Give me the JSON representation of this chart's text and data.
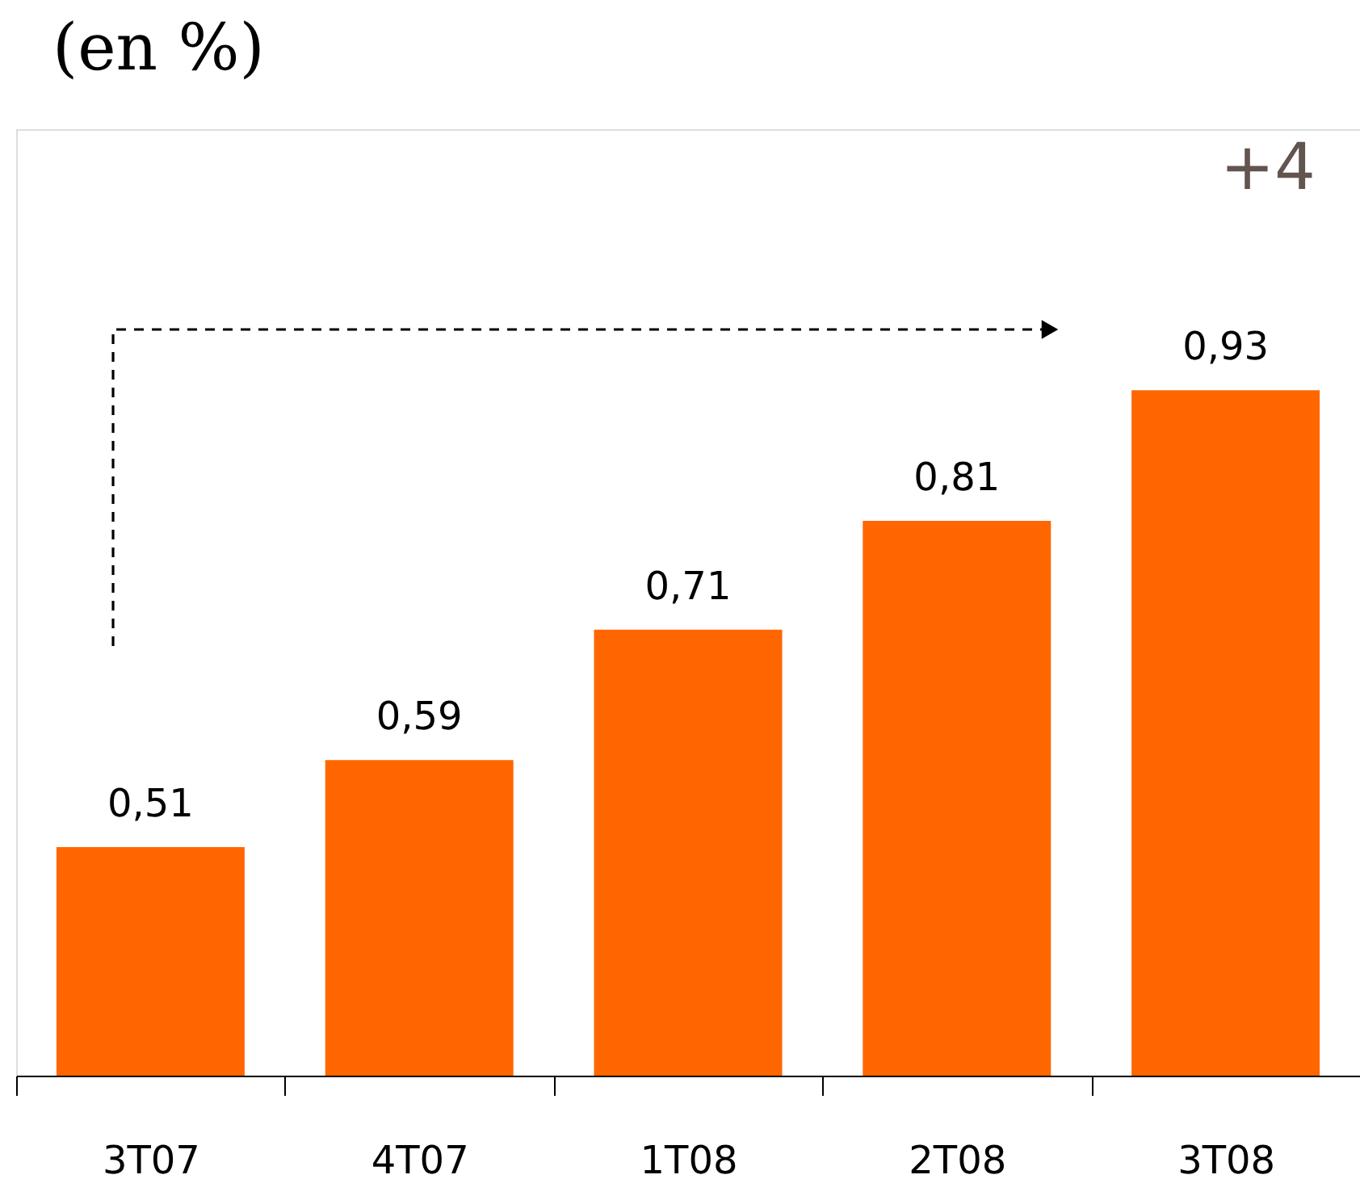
{
  "chart_data": {
    "type": "bar",
    "title": "(en %)",
    "categories": [
      "3T07",
      "4T07",
      "1T08",
      "2T08",
      "3T08"
    ],
    "values": [
      0.51,
      0.59,
      0.71,
      0.81,
      0.93
    ],
    "value_labels": [
      "0,51",
      "0,59",
      "0,71",
      "0,81",
      "0,93"
    ],
    "color": "#ff6600",
    "ylim": [
      0.3,
      1.17
    ],
    "tick_labels": "x",
    "annotations": [
      "+4"
    ]
  }
}
